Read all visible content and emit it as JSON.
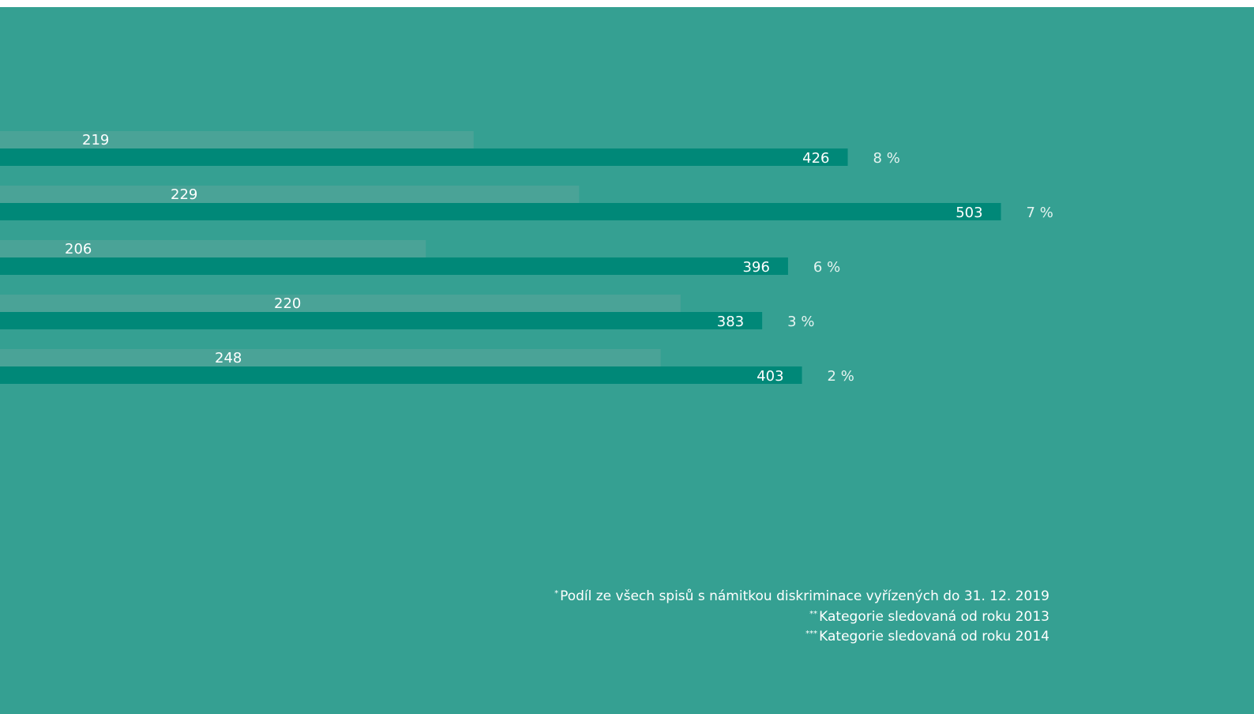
{
  "colors": {
    "background": "#35a092",
    "bar_light": "#4aa397",
    "bar_dark": "#008878",
    "label": "#ffffff",
    "percent_label": "#e6f4f1"
  },
  "chart_data": {
    "type": "bar",
    "orientation": "horizontal",
    "title": "",
    "xlabel": "",
    "ylabel": "",
    "categories": [
      "",
      "",
      "",
      "",
      ""
    ],
    "series": [
      {
        "values": [
          219,
          229,
          206,
          220,
          248
        ]
      },
      {
        "values": [
          426,
          503,
          396,
          383,
          403
        ]
      }
    ],
    "light_bar_extents": [
      238,
      291,
      214,
      342,
      332
    ],
    "percent_labels": [
      "8 %",
      "7 %",
      "6 %",
      "3 %",
      "2 %"
    ],
    "xlim": [
      0,
      503
    ]
  },
  "footnotes": [
    {
      "mark": "*",
      "text": "Podíl ze všech spisů s námitkou diskriminace vyřízených do 31. 12. 2019"
    },
    {
      "mark": "**",
      "text": "Kategorie sledovaná od roku 2013"
    },
    {
      "mark": "***",
      "text": "Kategorie sledovaná od roku 2014"
    }
  ]
}
